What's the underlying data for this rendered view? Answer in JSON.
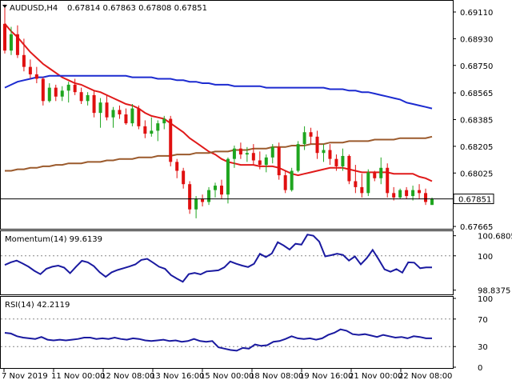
{
  "header": {
    "symbol": "AUDUSD,H4",
    "ohlc": "0.67814 0.67863 0.67808 0.67851"
  },
  "colors": {
    "bull": "#1fa51f",
    "bear": "#e01010",
    "ma_fast": "#e01a1a",
    "ma_mid": "#1c2bd0",
    "ma_slow": "#9b5a2c",
    "indicator_line": "#1a1aa0",
    "price_line": "#000000",
    "grid_dots": "#888888"
  },
  "chart_data": [
    {
      "type": "candlestick",
      "title": "AUDUSD,H4",
      "ylim": [
        0.6766,
        0.6918
      ],
      "y_ticks": [
        "0.69110",
        "0.68930",
        "0.68750",
        "0.68565",
        "0.68385",
        "0.68205",
        "0.68025",
        "0.67845",
        "0.67665"
      ],
      "y_tick_values": [
        0.6911,
        0.6893,
        0.6875,
        0.68565,
        0.68385,
        0.68205,
        0.68025,
        0.67845,
        0.67665
      ],
      "current_price_label": "0.67851",
      "current_price": 0.67851,
      "candles": [
        [
          0.6903,
          0.6916,
          0.6883,
          0.6885
        ],
        [
          0.6885,
          0.6901,
          0.6882,
          0.6896
        ],
        [
          0.6896,
          0.6902,
          0.688,
          0.6882
        ],
        [
          0.6882,
          0.6893,
          0.6871,
          0.6874
        ],
        [
          0.6874,
          0.6879,
          0.6866,
          0.6869
        ],
        [
          0.6869,
          0.6874,
          0.6863,
          0.6866
        ],
        [
          0.6866,
          0.6867,
          0.6848,
          0.6851
        ],
        [
          0.6851,
          0.6863,
          0.685,
          0.686
        ],
        [
          0.686,
          0.6862,
          0.6851,
          0.6854
        ],
        [
          0.6854,
          0.6861,
          0.6851,
          0.6858
        ],
        [
          0.6858,
          0.6864,
          0.685,
          0.6862
        ],
        [
          0.6862,
          0.6866,
          0.6855,
          0.6857
        ],
        [
          0.6857,
          0.686,
          0.6849,
          0.6851
        ],
        [
          0.6851,
          0.6857,
          0.6848,
          0.6855
        ],
        [
          0.6855,
          0.6858,
          0.684,
          0.6843
        ],
        [
          0.6843,
          0.6853,
          0.6833,
          0.685
        ],
        [
          0.685,
          0.6855,
          0.6838,
          0.684
        ],
        [
          0.684,
          0.6847,
          0.6833,
          0.6845
        ],
        [
          0.6845,
          0.6848,
          0.6839,
          0.6842
        ],
        [
          0.6842,
          0.6846,
          0.6835,
          0.6836
        ],
        [
          0.6836,
          0.6849,
          0.6834,
          0.6846
        ],
        [
          0.6846,
          0.6848,
          0.6832,
          0.6834
        ],
        [
          0.6834,
          0.6838,
          0.6826,
          0.6829
        ],
        [
          0.6829,
          0.684,
          0.6827,
          0.6831
        ],
        [
          0.6831,
          0.6838,
          0.6824,
          0.6836
        ],
        [
          0.6836,
          0.6841,
          0.6832,
          0.6839
        ],
        [
          0.6839,
          0.6841,
          0.6807,
          0.681
        ],
        [
          0.681,
          0.6812,
          0.6799,
          0.6804
        ],
        [
          0.6804,
          0.6806,
          0.6792,
          0.6795
        ],
        [
          0.6795,
          0.6797,
          0.6775,
          0.6778
        ],
        [
          0.6778,
          0.6787,
          0.6772,
          0.6785
        ],
        [
          0.6785,
          0.6788,
          0.678,
          0.6783
        ],
        [
          0.6783,
          0.6793,
          0.6781,
          0.6791
        ],
        [
          0.6791,
          0.6796,
          0.6786,
          0.6794
        ],
        [
          0.6794,
          0.6798,
          0.6785,
          0.6788
        ],
        [
          0.6788,
          0.6813,
          0.6782,
          0.6812
        ],
        [
          0.6812,
          0.6821,
          0.6806,
          0.6819
        ],
        [
          0.6819,
          0.6823,
          0.6812,
          0.6815
        ],
        [
          0.6815,
          0.682,
          0.681,
          0.6816
        ],
        [
          0.6816,
          0.6822,
          0.6808,
          0.6811
        ],
        [
          0.6811,
          0.6817,
          0.6805,
          0.6808
        ],
        [
          0.6808,
          0.6815,
          0.6803,
          0.6813
        ],
        [
          0.6813,
          0.6822,
          0.6809,
          0.682
        ],
        [
          0.682,
          0.6823,
          0.6798,
          0.6801
        ],
        [
          0.6801,
          0.6804,
          0.6789,
          0.6791
        ],
        [
          0.6791,
          0.6806,
          0.679,
          0.6804
        ],
        [
          0.6804,
          0.6824,
          0.6803,
          0.6822
        ],
        [
          0.6822,
          0.6834,
          0.6818,
          0.683
        ],
        [
          0.683,
          0.6833,
          0.6822,
          0.6827
        ],
        [
          0.6827,
          0.6831,
          0.6812,
          0.6816
        ],
        [
          0.6816,
          0.6822,
          0.681,
          0.6818
        ],
        [
          0.6818,
          0.6822,
          0.6808,
          0.6812
        ],
        [
          0.6812,
          0.6815,
          0.6804,
          0.6807
        ],
        [
          0.6807,
          0.6819,
          0.6804,
          0.6814
        ],
        [
          0.6814,
          0.6815,
          0.6795,
          0.6797
        ],
        [
          0.6797,
          0.6808,
          0.6789,
          0.6793
        ],
        [
          0.6793,
          0.6802,
          0.6786,
          0.6789
        ],
        [
          0.6789,
          0.6805,
          0.6787,
          0.6803
        ],
        [
          0.6803,
          0.6804,
          0.6797,
          0.6799
        ],
        [
          0.6799,
          0.6813,
          0.6795,
          0.6806
        ],
        [
          0.6806,
          0.6809,
          0.6786,
          0.6789
        ],
        [
          0.6789,
          0.6793,
          0.6784,
          0.6786
        ],
        [
          0.6786,
          0.6792,
          0.6785,
          0.6791
        ],
        [
          0.6791,
          0.6793,
          0.6785,
          0.6787
        ],
        [
          0.6787,
          0.6794,
          0.6784,
          0.6791
        ],
        [
          0.6791,
          0.6795,
          0.6785,
          0.6789
        ],
        [
          0.6789,
          0.6792,
          0.6781,
          0.6783
        ],
        [
          0.6781,
          0.6786,
          0.6781,
          0.6785
        ]
      ],
      "series": [
        {
          "name": "",
          "color_key": "ma_fast",
          "values": [
            0.6903,
            0.6898,
            0.6894,
            0.6889,
            0.6884,
            0.688,
            0.6876,
            0.6873,
            0.687,
            0.6867,
            0.6865,
            0.6863,
            0.6862,
            0.686,
            0.6858,
            0.6857,
            0.6855,
            0.6853,
            0.6851,
            0.6849,
            0.6848,
            0.6846,
            0.6843,
            0.6841,
            0.684,
            0.6839,
            0.6836,
            0.6833,
            0.683,
            0.6826,
            0.6823,
            0.682,
            0.6817,
            0.6815,
            0.6812,
            0.681,
            0.6809,
            0.6808,
            0.6808,
            0.6808,
            0.6807,
            0.6807,
            0.6807,
            0.6806,
            0.6804,
            0.6802,
            0.6801,
            0.6802,
            0.6803,
            0.6804,
            0.6805,
            0.6806,
            0.6806,
            0.6806,
            0.6805,
            0.6804,
            0.6803,
            0.6803,
            0.6803,
            0.6803,
            0.6803,
            0.6802,
            0.6802,
            0.6802,
            0.6802,
            0.68,
            0.6799,
            0.6797
          ]
        },
        {
          "name": "",
          "color_key": "ma_mid",
          "values": [
            0.686,
            0.6862,
            0.6864,
            0.6865,
            0.6866,
            0.6867,
            0.6867,
            0.6868,
            0.6868,
            0.6868,
            0.6868,
            0.6868,
            0.6868,
            0.6868,
            0.6868,
            0.6868,
            0.6868,
            0.6868,
            0.6868,
            0.6868,
            0.6867,
            0.6867,
            0.6867,
            0.6867,
            0.6866,
            0.6866,
            0.6866,
            0.6865,
            0.6865,
            0.6864,
            0.6864,
            0.6863,
            0.6863,
            0.6862,
            0.6862,
            0.6862,
            0.6861,
            0.6861,
            0.6861,
            0.6861,
            0.6861,
            0.686,
            0.686,
            0.686,
            0.686,
            0.686,
            0.686,
            0.686,
            0.686,
            0.686,
            0.686,
            0.6859,
            0.6859,
            0.6859,
            0.6858,
            0.6858,
            0.6857,
            0.6857,
            0.6856,
            0.6855,
            0.6854,
            0.6853,
            0.6852,
            0.685,
            0.6849,
            0.6848,
            0.6847,
            0.6846
          ]
        },
        {
          "name": "",
          "color_key": "ma_slow",
          "values": [
            0.6804,
            0.6804,
            0.6805,
            0.6805,
            0.6806,
            0.6806,
            0.6807,
            0.6807,
            0.6808,
            0.6808,
            0.6809,
            0.6809,
            0.6809,
            0.681,
            0.681,
            0.681,
            0.6811,
            0.6811,
            0.6812,
            0.6812,
            0.6812,
            0.6813,
            0.6813,
            0.6813,
            0.6814,
            0.6814,
            0.6814,
            0.6815,
            0.6815,
            0.6815,
            0.6816,
            0.6816,
            0.6816,
            0.6817,
            0.6817,
            0.6817,
            0.6818,
            0.6818,
            0.6818,
            0.6819,
            0.6819,
            0.6819,
            0.682,
            0.682,
            0.682,
            0.6821,
            0.6821,
            0.6821,
            0.6822,
            0.6822,
            0.6822,
            0.6823,
            0.6823,
            0.6823,
            0.6824,
            0.6824,
            0.6824,
            0.6824,
            0.6825,
            0.6825,
            0.6825,
            0.6825,
            0.6826,
            0.6826,
            0.6826,
            0.6826,
            0.6826,
            0.6827
          ]
        }
      ]
    },
    {
      "type": "line",
      "title": "Momentum(14) 99.6139",
      "ylim": [
        98.72,
        100.78
      ],
      "y_ticks": [
        "100.6805",
        "100",
        "98.8375"
      ],
      "y_tick_values": [
        100.6805,
        100.0,
        98.8375
      ],
      "dotted_levels": [
        100.0
      ],
      "series": [
        {
          "name": "",
          "color_key": "indicator_line",
          "values": [
            99.69,
            99.78,
            99.84,
            99.74,
            99.63,
            99.49,
            99.38,
            99.56,
            99.63,
            99.67,
            99.6,
            99.41,
            99.63,
            99.83,
            99.78,
            99.65,
            99.44,
            99.29,
            99.44,
            99.52,
            99.58,
            99.64,
            99.71,
            99.86,
            99.9,
            99.77,
            99.63,
            99.56,
            99.35,
            99.23,
            99.12,
            99.38,
            99.42,
            99.37,
            99.47,
            99.49,
            99.51,
            99.61,
            99.81,
            99.73,
            99.67,
            99.62,
            99.73,
            100.07,
            99.96,
            100.08,
            100.46,
            100.35,
            100.21,
            100.41,
            100.38,
            100.72,
            100.68,
            100.48,
            99.98,
            100.02,
            100.07,
            100.03,
            99.84,
            99.98,
            99.71,
            99.92,
            100.2,
            99.88,
            99.54,
            99.46,
            99.55,
            99.43,
            99.78,
            99.77,
            99.58,
            99.61,
            99.61
          ]
        }
      ]
    },
    {
      "type": "line",
      "title": "RSI(14) 42.2119",
      "ylim": [
        0,
        100
      ],
      "y_ticks": [
        "100",
        "70",
        "30",
        "0"
      ],
      "y_tick_values": [
        100,
        70,
        30,
        0
      ],
      "dotted_levels": [
        70,
        30
      ],
      "series": [
        {
          "name": "",
          "color_key": "indicator_line",
          "values": [
            50,
            49,
            45,
            43,
            42,
            41,
            44,
            40,
            39,
            40,
            39,
            40,
            41,
            43,
            43,
            41,
            42,
            41,
            43,
            41,
            40,
            42,
            41,
            39,
            38,
            39,
            40,
            38,
            39,
            37,
            38,
            41,
            38,
            37,
            38,
            29,
            27,
            25,
            24,
            28,
            27,
            33,
            31,
            32,
            37,
            38,
            41,
            45,
            42,
            41,
            42,
            40,
            42,
            47,
            50,
            55,
            53,
            48,
            47,
            48,
            46,
            44,
            47,
            45,
            43,
            44,
            42,
            45,
            44,
            42,
            42
          ]
        }
      ]
    }
  ],
  "x_axis": {
    "labels": [
      "7 Nov 2019",
      "11 Nov 00:00",
      "12 Nov 08:00",
      "13 Nov 16:00",
      "15 Nov 00:00",
      "18 Nov 08:00",
      "19 Nov 16:00",
      "21 Nov 00:00",
      "22 Nov 08:00"
    ]
  }
}
